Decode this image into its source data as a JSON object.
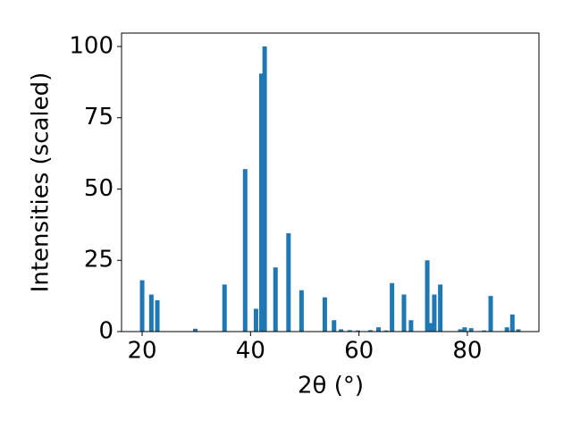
{
  "chart_data": {
    "type": "bar",
    "x": [
      20.0,
      21.7,
      22.8,
      29.8,
      35.2,
      39.0,
      41.0,
      42.0,
      42.6,
      44.6,
      47.0,
      49.4,
      53.7,
      55.4,
      56.7,
      58.3,
      59.8,
      62.1,
      63.6,
      65.0,
      66.1,
      68.3,
      69.6,
      72.6,
      73.4,
      73.9,
      75.0,
      78.7,
      79.5,
      80.7,
      83.1,
      84.3,
      87.3,
      88.3,
      89.4
    ],
    "values": [
      18,
      13,
      11,
      1,
      16.5,
      57,
      8,
      90.5,
      100,
      22.5,
      34.5,
      14.5,
      12,
      4,
      0.8,
      0.5,
      0.4,
      0.5,
      1.5,
      0.4,
      17,
      13,
      4,
      25,
      3,
      13,
      16.5,
      0.8,
      1.5,
      1.2,
      0.4,
      12.5,
      1.5,
      6,
      0.8
    ],
    "color": "#1f77b4",
    "xlabel": "2θ (°)",
    "ylabel": "Intensities (scaled)",
    "xlim": [
      16.2,
      93.2
    ],
    "xticks": [
      20,
      40,
      60,
      80
    ],
    "ylim": [
      0,
      104.7
    ],
    "yticks": [
      0,
      25,
      50,
      75,
      100
    ]
  }
}
